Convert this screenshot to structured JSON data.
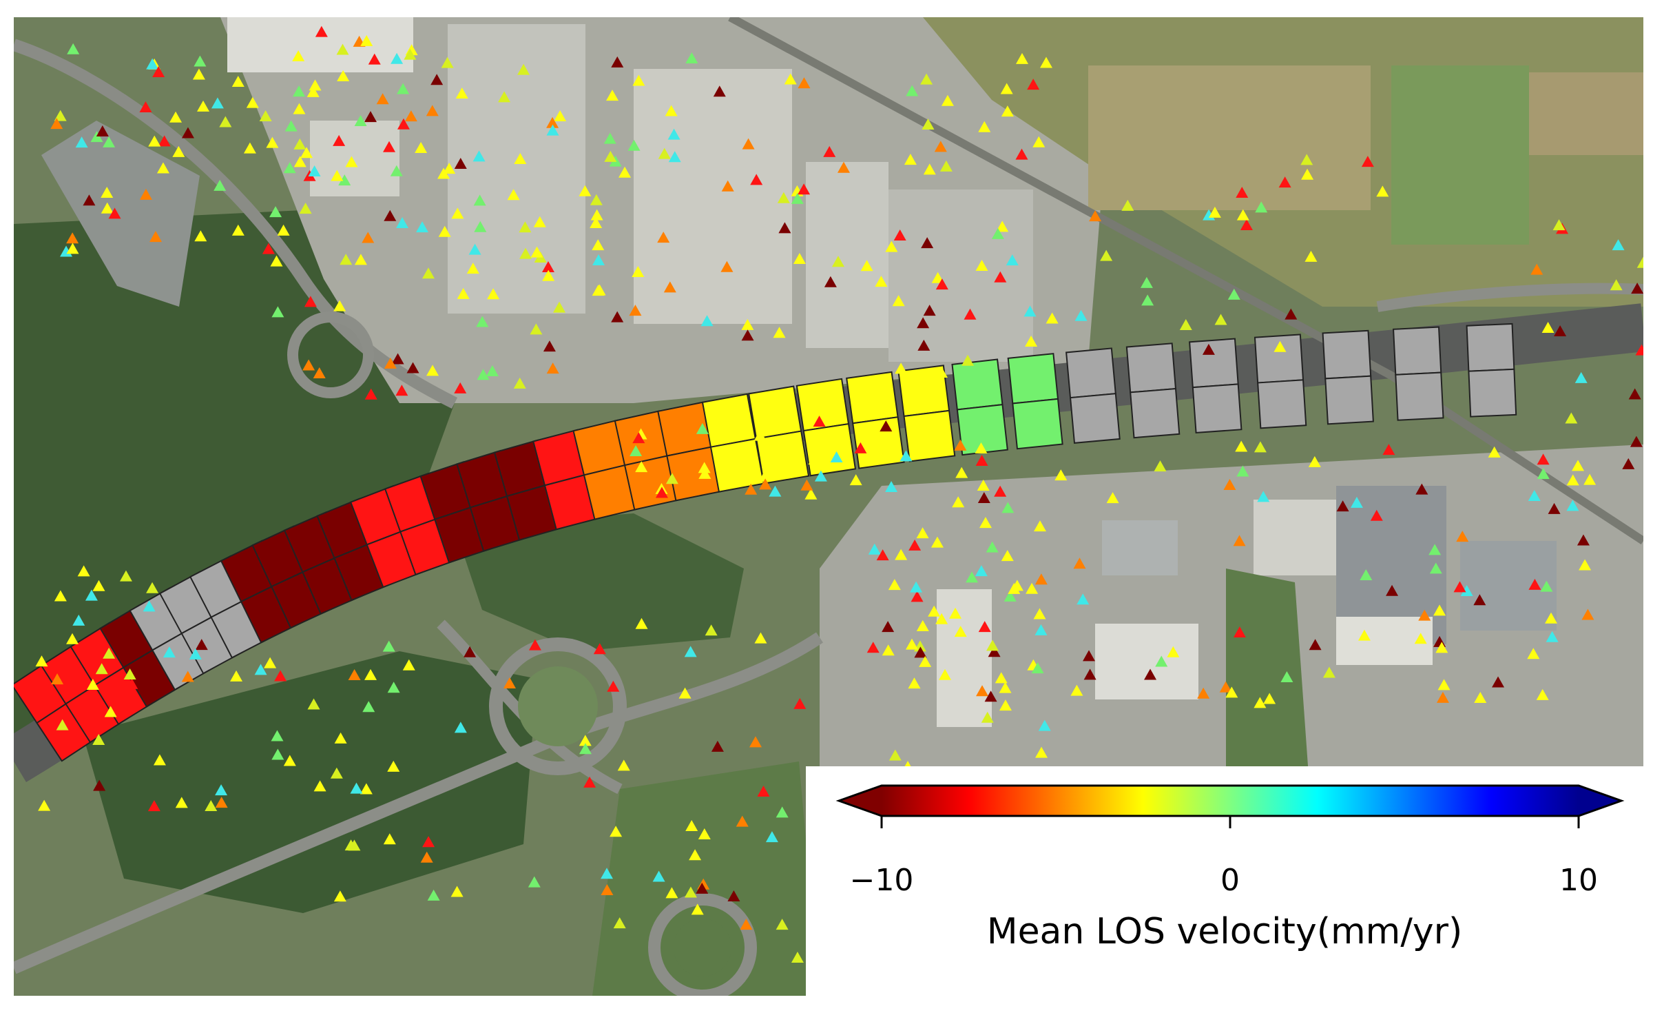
{
  "map": {
    "basemap": "aerial satellite imagery of an industrial area with a curved highway, roundabouts, green fields and forest",
    "segment_colors": {
      "dark_red": "#7a0000",
      "red": "#ff1414",
      "orange": "#ff7f00",
      "yellow": "#ffff10",
      "green": "#73f06e",
      "no_data": "#a7a7a7"
    },
    "segment_classes_along_road_west_to_east": [
      "red",
      "red",
      "red",
      "dark_red",
      "no_data",
      "no_data",
      "no_data",
      "dark_red",
      "dark_red",
      "dark_red",
      "dark_red",
      "red",
      "red",
      "dark_red",
      "dark_red",
      "dark_red",
      "red",
      "orange",
      "orange",
      "orange",
      "yellow",
      "yellow",
      "yellow",
      "yellow",
      "yellow",
      "green",
      "green",
      "no_data",
      "no_data",
      "no_data",
      "no_data",
      "no_data",
      "no_data",
      "no_data"
    ],
    "point_marker": "triangle"
  },
  "colorbar": {
    "min": -10,
    "max": 10,
    "ticks": [
      {
        "value": -10,
        "label": "−10"
      },
      {
        "value": 0,
        "label": "0"
      },
      {
        "value": 10,
        "label": "10"
      }
    ],
    "title": "Mean LOS velocity(mm/yr)",
    "colormap": "jet_r",
    "extend": "both",
    "stops": [
      "#800000",
      "#ff0000",
      "#ff8000",
      "#ffff00",
      "#80ff80",
      "#00ffff",
      "#0080ff",
      "#0000ff",
      "#00008f"
    ]
  }
}
